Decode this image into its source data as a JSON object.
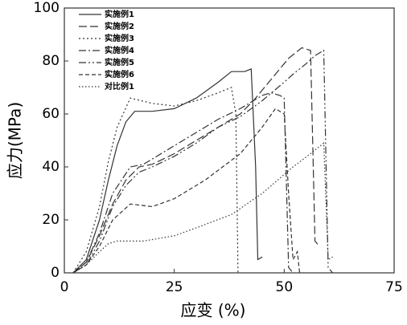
{
  "chart_data": {
    "type": "line",
    "x_label": "应变 (%)",
    "y_label": "应力(MPa)",
    "xlim": [
      0,
      75
    ],
    "ylim": [
      0,
      100
    ],
    "xticks": [
      0,
      25,
      50,
      75
    ],
    "yticks": [
      0,
      20,
      40,
      60,
      80,
      100
    ],
    "series": [
      {
        "name": "实施例1",
        "color": "#333333",
        "x": [
          2,
          5,
          8,
          10,
          12,
          14,
          16,
          20,
          25,
          30,
          35,
          38,
          41,
          42.5,
          43.5,
          44,
          45
        ],
        "values": [
          0,
          5,
          20,
          35,
          48,
          57,
          61,
          61,
          62,
          66,
          72,
          76,
          76,
          77,
          40,
          5,
          6
        ]
      },
      {
        "name": "实施例2",
        "color": "#333333",
        "x": [
          2,
          5,
          8,
          11,
          14,
          17,
          20,
          25,
          30,
          35,
          40,
          43,
          48,
          51,
          54,
          56,
          57,
          58
        ],
        "values": [
          0,
          4,
          14,
          26,
          35,
          40,
          41,
          45,
          50,
          55,
          60,
          65,
          75,
          81,
          85,
          84,
          12,
          10
        ]
      },
      {
        "name": "实施例3",
        "color": "#333333",
        "x": [
          2,
          5,
          8,
          10,
          12,
          15,
          20,
          25,
          30,
          35,
          38,
          39,
          39.5
        ],
        "values": [
          0,
          8,
          25,
          42,
          55,
          66,
          64,
          63,
          65,
          68,
          70,
          60,
          0
        ]
      },
      {
        "name": "实施例4",
        "color": "#333333",
        "x": [
          2,
          5,
          8,
          11,
          15,
          18,
          25,
          30,
          35,
          40,
          42,
          45,
          47,
          49,
          50,
          51,
          52
        ],
        "values": [
          0,
          4,
          15,
          30,
          40,
          41,
          48,
          53,
          58,
          62,
          64,
          67,
          68,
          67,
          66,
          2,
          0
        ]
      },
      {
        "name": "实施例5",
        "color": "#333333",
        "x": [
          2,
          5,
          8,
          11,
          14,
          17,
          20,
          25,
          30,
          35,
          40,
          45,
          50,
          52,
          55,
          57,
          59,
          60,
          61
        ],
        "values": [
          0,
          3,
          12,
          25,
          33,
          38,
          40,
          44,
          49,
          55,
          59,
          65,
          72,
          75,
          79,
          82,
          84,
          2,
          0
        ]
      },
      {
        "name": "实施例6",
        "color": "#333333",
        "x": [
          2,
          5,
          8,
          11,
          15,
          20,
          25,
          32,
          40,
          45,
          48,
          50,
          51,
          52,
          53,
          53.5
        ],
        "values": [
          0,
          3,
          10,
          20,
          26,
          25,
          28,
          35,
          45,
          55,
          62,
          60,
          30,
          5,
          8,
          0
        ]
      },
      {
        "name": "对比例1",
        "color": "#333333",
        "x": [
          2,
          5,
          8,
          10,
          12,
          18,
          25,
          30,
          38,
          45,
          52,
          56,
          59,
          60,
          61
        ],
        "values": [
          0,
          3,
          8,
          11,
          12,
          12,
          14,
          17,
          22,
          30,
          40,
          45,
          49,
          5,
          6
        ]
      }
    ]
  }
}
